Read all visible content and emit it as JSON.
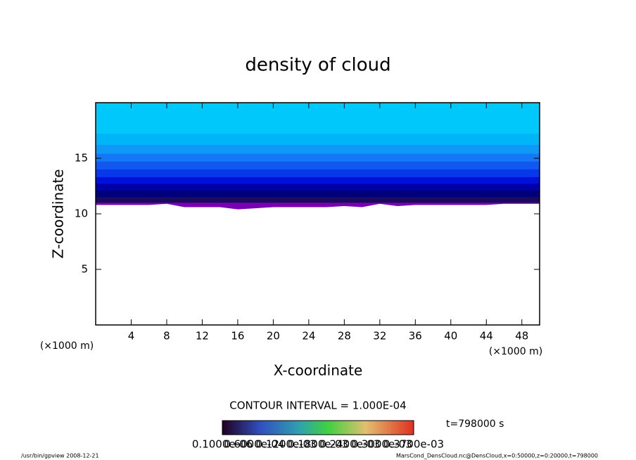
{
  "chart_data": {
    "type": "contour",
    "title": "density of cloud",
    "x_label": "X-coordinate",
    "y_label": "Z-coordinate",
    "x_unit": "(×1000 m)",
    "y_unit": "(×1000 m)",
    "xlim": [
      0,
      50
    ],
    "ylim": [
      0,
      20
    ],
    "xticks": [
      4,
      8,
      12,
      16,
      20,
      24,
      28,
      32,
      36,
      40,
      44,
      48
    ],
    "yticks": [
      5,
      10,
      15
    ],
    "x": [
      0,
      2,
      4,
      6,
      8,
      10,
      12,
      14,
      16,
      18,
      20,
      22,
      24,
      26,
      28,
      30,
      32,
      34,
      36,
      38,
      40,
      42,
      44,
      46,
      48,
      50
    ],
    "cloud_base": [
      10.8,
      10.8,
      10.8,
      10.8,
      10.9,
      10.6,
      10.6,
      10.6,
      10.4,
      10.5,
      10.6,
      10.6,
      10.6,
      10.6,
      10.7,
      10.6,
      10.9,
      10.7,
      10.8,
      10.8,
      10.8,
      10.8,
      10.8,
      10.9,
      10.9,
      10.9
    ],
    "cloud_base_color": "#7a00b4",
    "layers": [
      {
        "z": 11.0,
        "color": "#1c0a5c"
      },
      {
        "z": 11.5,
        "color": "#00007a"
      },
      {
        "z": 12.1,
        "color": "#0000a8"
      },
      {
        "z": 12.7,
        "color": "#0010d8"
      },
      {
        "z": 13.3,
        "color": "#0838ec"
      },
      {
        "z": 14.0,
        "color": "#1058f0"
      },
      {
        "z": 14.7,
        "color": "#1478f4"
      },
      {
        "z": 15.4,
        "color": "#1098f6"
      },
      {
        "z": 16.2,
        "color": "#00b4f8"
      },
      {
        "z": 17.2,
        "color": "#00c8fa"
      }
    ],
    "contour_interval": "CONTOUR INTERVAL = 1.000E-04",
    "time_label": "t=798000 s",
    "colorbar_labels": [
      "0.1000e-06",
      "0.6000e-04",
      "0.1200e-03",
      "0.1800e-03",
      "0.2400e-03",
      "0.3000e-03",
      "0.3700e-03"
    ],
    "footer_left": "/usr/bin/gpview   2008-12-21",
    "footer_right": "MarsCond_DensCloud.nc@DensCloud,x=0:50000,z=0:20000,t=798000"
  }
}
